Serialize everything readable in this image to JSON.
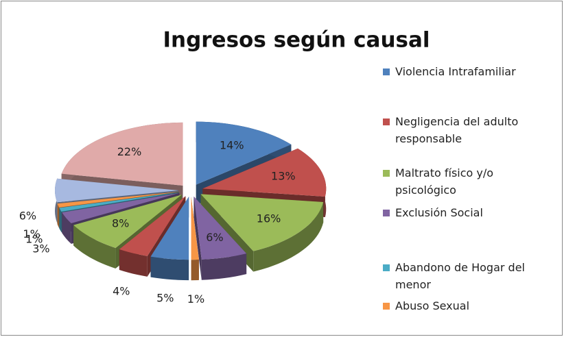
{
  "chart_data": {
    "type": "pie",
    "title": "Ingresos según causal",
    "categories": [
      "Violencia Intrafamiliar",
      "Negligencia del adulto responsable",
      "Maltrato físico y/o psicológico",
      "Exclusión Social",
      "Abandono de Hogar del menor",
      "Abuso Sexual",
      null,
      null,
      null,
      null,
      null,
      null,
      null,
      null
    ],
    "values": [
      14,
      13,
      16,
      6,
      0,
      1,
      5,
      4,
      8,
      3,
      1,
      1,
      6,
      22
    ],
    "value_labels": [
      "14%",
      "13%",
      "16%",
      "6%",
      null,
      "1%",
      "5%",
      "4%",
      "8%",
      "3%",
      "1%",
      "1%",
      "6%",
      "22%"
    ],
    "colors": [
      "#4f81bd",
      "#c0504d",
      "#9bbb59",
      "#8064a2",
      "#4bacc6",
      "#f79646",
      "#4f81bd",
      "#c0504d",
      "#9bbb59",
      "#8064a2",
      "#4bacc6",
      "#f79646",
      "#a7b9e0",
      "#e0aaa9"
    ],
    "legend": "right"
  }
}
